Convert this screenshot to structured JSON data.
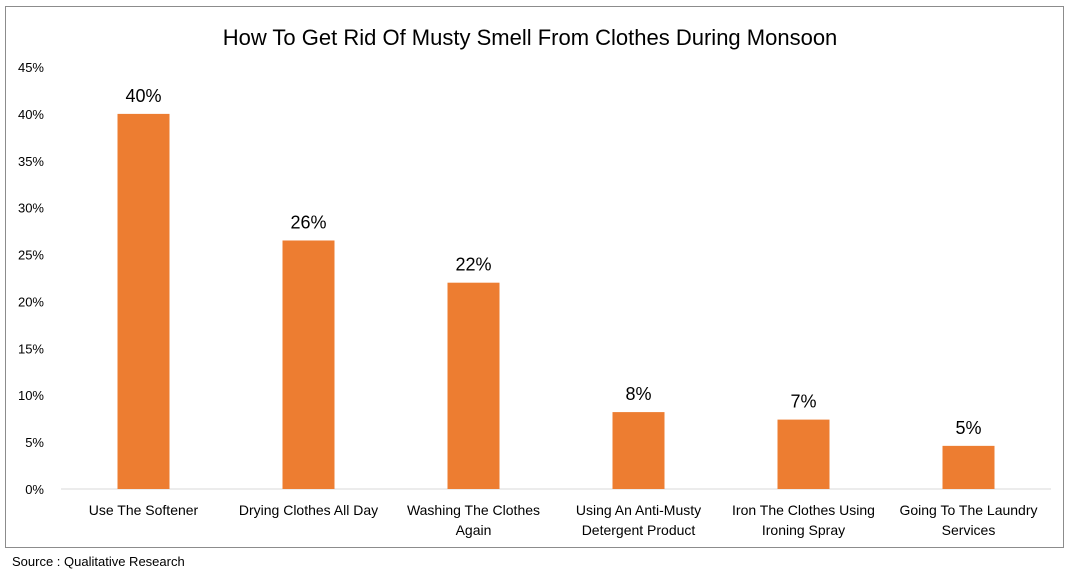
{
  "source_note": "Source : Qualitative Research",
  "chart_data": {
    "type": "bar",
    "title": "How To Get Rid Of Musty Smell From Clothes During Monsoon",
    "xlabel": "",
    "ylabel": "",
    "categories": [
      [
        "Use The Softener"
      ],
      [
        "Drying Clothes All Day"
      ],
      [
        "Washing The Clothes",
        "Again"
      ],
      [
        "Using An Anti-Musty",
        "Detergent Product"
      ],
      [
        "Iron The Clothes Using",
        "Ironing Spray"
      ],
      [
        "Going To The Laundry",
        "Services"
      ]
    ],
    "values": [
      40,
      26.5,
      22,
      8.2,
      7.4,
      4.6
    ],
    "data_labels": [
      "40%",
      "26%",
      "22%",
      "8%",
      "7%",
      "5%"
    ],
    "ylim": [
      0,
      45
    ],
    "yticks": [
      0,
      5,
      10,
      15,
      20,
      25,
      30,
      35,
      40,
      45
    ],
    "ytick_format": "%",
    "grid": false,
    "bar_color": "#ED7D31"
  }
}
